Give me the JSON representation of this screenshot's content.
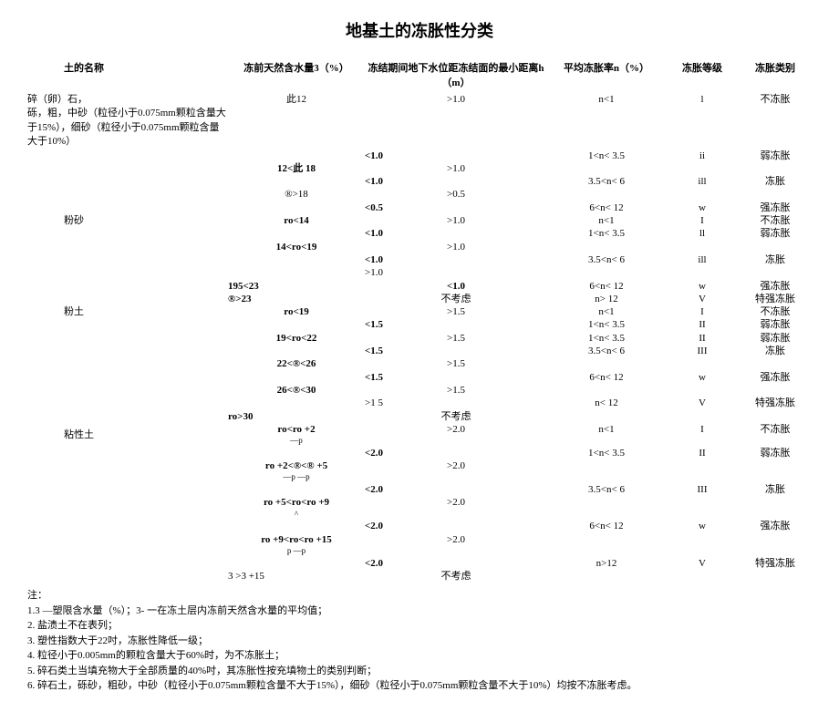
{
  "title": "地基土的冻胀性分类",
  "headers": [
    "土的名称",
    "冻前天然含水量3（%）",
    "冻结期间地下水位距冻结面的最小距离h （m）",
    "平均冻胀率n（%）",
    "冻胀等级",
    "冻胀类别"
  ],
  "soils": {
    "s0": "碎（卵）石，\n砾，粗，中砂（粒径小于0.075mm颗粒含量大于15%），细砂（粒径小于0.075mm颗粒含量大于10%）",
    "s1": "粉砂",
    "s2": "粉土",
    "s3": "粘性土"
  },
  "col2": {
    "a1": "此12",
    "a2": "12<此  18",
    "a3": "®>18",
    "b1": "ro<14",
    "b2": "14<ro<19",
    "b3": "195<23",
    "b4": "®>23",
    "c1": "ro<19",
    "c2": "19<ro<22",
    "c3": "22<®<26",
    "c4": "26<®<30",
    "c5": "ro>30",
    "d1": "ro<ro +2",
    "d1s": "—p",
    "d2": "ro +2<®<® +5",
    "d2s": "—p      —p",
    "d3": "ro +5<ro<ro +9",
    "d3s": "^",
    "d4": "ro +9<ro<ro +15",
    "d4s": "p  —p",
    "d5": "3 >3 +15"
  },
  "h": {
    "g10": ">1.0",
    "l10": "<1.0",
    "g05": ">0.5",
    "l05": "<0.5",
    "g15": ">1.5",
    "l15": "<1.5",
    "s15": ">1 5",
    "g20": ">2.0",
    "l20": "<2.0",
    "nk": "不考虑"
  },
  "n": {
    "n1": "n<1",
    "n2": "1<n< 3.5",
    "n3": "3.5<n< 6",
    "n4": "6<n< 12",
    "n5": "n> 12",
    "n4b": "n< 12",
    "n6": "n>12",
    "n2b": "1<n< 3.5"
  },
  "grade": {
    "g1": "I",
    "g1l": "l",
    "g2": "II",
    "g2l": "ll",
    "g2i": "ii",
    "g3": "III",
    "g3l": "ill",
    "g4": "w",
    "g5": "V"
  },
  "cat": {
    "c1": "不冻胀",
    "c2": "弱冻胀",
    "c3": "冻胀",
    "c4": "强冻胀",
    "c5": "特强冻胀"
  },
  "notes_title": "注：",
  "notes": [
    "1.3 —塑限含水量（%）；3- 一在冻土层内冻前天然含水量的平均值；",
    "2. 盐渍土不在表列；",
    "3. 塑性指数大于22吋，冻胀性降低一级；",
    "4. 粒径小于0.005mm的颗粒含量大于60%时，为不冻胀土；",
    "5. 碎石类土当填充物大于全部质量的40%吋，其冻胀性按充填物土的类别判断；",
    "6. 碎石土，砾砂，粗砂，中砂（粒径小于0.075mm颗粒含量不大于15%），细砂（粒径小于0.075mm颗粒含量不大于10%）均按不冻胀考虑。"
  ]
}
